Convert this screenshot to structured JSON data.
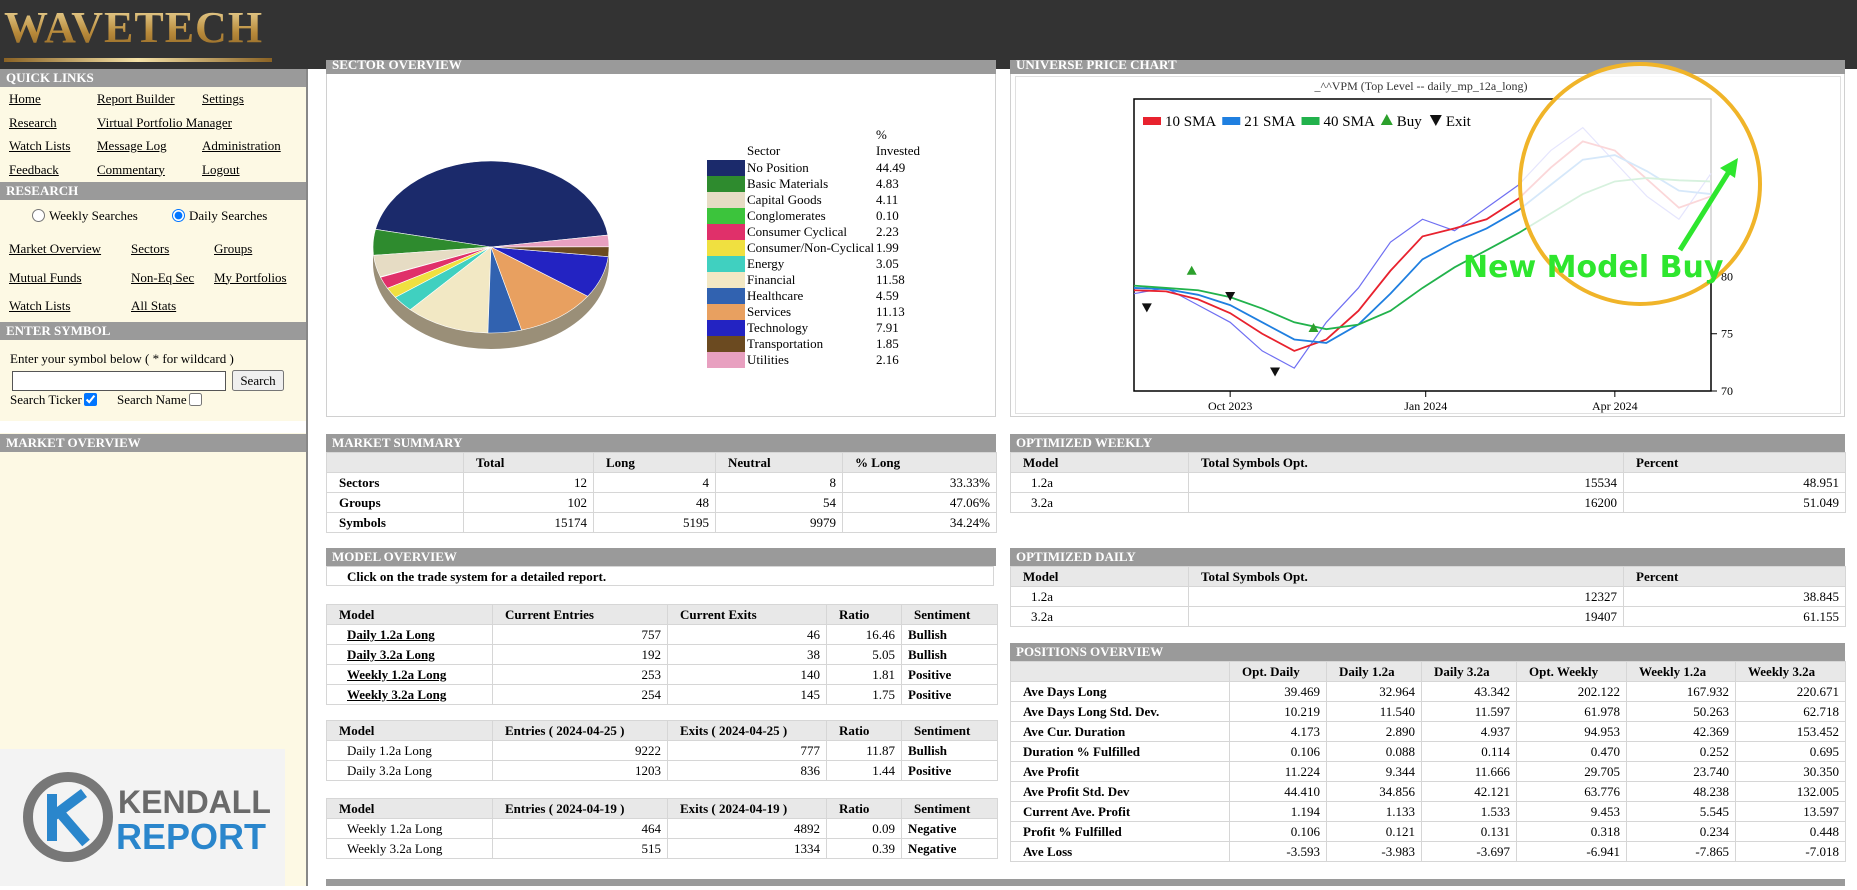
{
  "header": {
    "brand": "WAVETECH"
  },
  "sidebar": {
    "quick_links": {
      "title": "QUICK LINKS",
      "rows": [
        [
          "Home",
          "Report Builder",
          "Settings"
        ],
        [
          "Research",
          "Virtual Portfolio Manager"
        ],
        [
          "Watch Lists",
          "Message Log",
          "Administration"
        ],
        [
          "Feedback",
          "Commentary",
          "Logout"
        ]
      ]
    },
    "research": {
      "title": "RESEARCH",
      "options": [
        "Weekly Searches",
        "Daily Searches"
      ],
      "selected": 1,
      "rows": [
        [
          "Market Overview",
          "Sectors",
          "Groups"
        ],
        [
          "Mutual Funds",
          "Non-Eq Sec",
          "My Portfolios"
        ],
        [
          "Watch Lists",
          "All Stats"
        ]
      ]
    },
    "enter_symbol": {
      "title": "ENTER SYMBOL",
      "prompt": "Enter your symbol below ( * for wildcard )",
      "button": "Search",
      "checks": [
        {
          "label": "Search Ticker",
          "checked": true
        },
        {
          "label": "Search Name",
          "checked": false
        }
      ]
    },
    "market_overview": {
      "title": "MARKET OVERVIEW"
    },
    "logo": {
      "line1": "KENDALL",
      "line2": "REPORT"
    }
  },
  "sector_overview": {
    "title": "SECTOR OVERVIEW"
  },
  "price_chart_panel": {
    "title": "UNIVERSE PRICE CHART"
  },
  "chart_data": [
    {
      "type": "pie",
      "columns": [
        "Sector",
        "% Invested"
      ],
      "categories": [
        "No Position",
        "Basic Materials",
        "Capital Goods",
        "Conglomerates",
        "Consumer Cyclical",
        "Consumer/Non-Cyclical",
        "Energy",
        "Financial",
        "Healthcare",
        "Services",
        "Technology",
        "Transportation",
        "Utilities"
      ],
      "values": [
        44.49,
        4.83,
        4.11,
        0.1,
        2.23,
        1.99,
        3.05,
        11.58,
        4.59,
        11.13,
        7.91,
        1.85,
        2.16
      ],
      "value_labels": [
        "44.49",
        "4.83",
        "4.11",
        "0.10",
        "2.23",
        "1.99",
        "3.05",
        "11.58",
        "4.59",
        "11.13",
        "7.91",
        "1.85",
        "2.16"
      ],
      "colors": [
        "#1b2a6b",
        "#2e8b2e",
        "#e6dcc4",
        "#3cc43c",
        "#e0306a",
        "#f0e040",
        "#40d0c0",
        "#f2e8c4",
        "#3162b0",
        "#e8a060",
        "#2323c2",
        "#6b4a20",
        "#e8a0c0"
      ]
    },
    {
      "type": "line",
      "title": "_^^VPM (Top Level -- daily_mp_12a_long)",
      "x": [
        0,
        0.5,
        1,
        1.5,
        2,
        2.5,
        3,
        3.5,
        4,
        4.5,
        5,
        5.5,
        6,
        6.5,
        7,
        7.5,
        8,
        8.5,
        9
      ],
      "series": [
        {
          "color": "#6f6ff2",
          "values": [
            78.5,
            79,
            77.5,
            76,
            73.5,
            72,
            76,
            79,
            83,
            85,
            84,
            86,
            88,
            91,
            93,
            90,
            87,
            85,
            89
          ]
        },
        {
          "name": "10 SMA",
          "color": "#e8222e",
          "values": [
            78.8,
            78.7,
            78,
            76.8,
            75,
            73.5,
            74.5,
            77,
            80.5,
            83.5,
            84.2,
            85,
            86.8,
            89.5,
            91.8,
            91,
            88.5,
            86,
            87
          ]
        },
        {
          "name": "21 SMA",
          "color": "#1f7fe0",
          "values": [
            79,
            78.9,
            78.4,
            77.5,
            76,
            74.5,
            74.2,
            75.8,
            78.5,
            81.5,
            83,
            84.2,
            85.8,
            88,
            90.2,
            90.6,
            89.2,
            87.5,
            87.2
          ]
        },
        {
          "name": "40 SMA",
          "color": "#22b24c",
          "values": [
            79.2,
            79,
            78.8,
            78.2,
            77.2,
            76,
            75.4,
            75.8,
            77,
            79,
            80.8,
            82.3,
            83.8,
            85.5,
            87.2,
            88.3,
            88.6,
            88.4,
            88.3
          ]
        }
      ],
      "markers": [
        {
          "name": "Buy",
          "color": "#2ca02c",
          "x": [
            0.9,
            2.8
          ],
          "values": [
            80.5,
            75.5
          ]
        },
        {
          "name": "Exit",
          "color": "#111111",
          "x": [
            0.2,
            1.5,
            2.2
          ],
          "values": [
            77.3,
            78.3,
            71.7
          ]
        }
      ],
      "xlim": [
        0,
        9
      ],
      "ylim": [
        70,
        95.5
      ],
      "xticks": [
        {
          "value": 1.5,
          "label": "Oct 2023"
        },
        {
          "value": 4.55,
          "label": "Jan 2024"
        },
        {
          "value": 7.5,
          "label": "Apr 2024"
        }
      ],
      "yticks": [
        70,
        75,
        80
      ],
      "annotation": "New Model Buy"
    }
  ],
  "market_summary": {
    "title": "MARKET SUMMARY",
    "columns": [
      "Total",
      "Long",
      "Neutral",
      "% Long"
    ],
    "rows": [
      [
        "Sectors",
        "12",
        "4",
        "8",
        "33.33%"
      ],
      [
        "Groups",
        "102",
        "48",
        "54",
        "47.06%"
      ],
      [
        "Symbols",
        "15174",
        "5195",
        "9979",
        "34.24%"
      ]
    ]
  },
  "model_overview": {
    "title": "MODEL OVERVIEW",
    "note": "Click on the trade system for a detailed report.",
    "tables": [
      {
        "linked": true,
        "columns": [
          "Model",
          "Current Entries",
          "Current Exits",
          "Ratio",
          "Sentiment"
        ],
        "rows": [
          [
            "Daily 1.2a Long",
            "757",
            "46",
            "16.46",
            "Bullish"
          ],
          [
            "Daily 3.2a Long",
            "192",
            "38",
            "5.05",
            "Bullish"
          ],
          [
            "Weekly 1.2a Long",
            "253",
            "140",
            "1.81",
            "Positive"
          ],
          [
            "Weekly 3.2a Long",
            "254",
            "145",
            "1.75",
            "Positive"
          ]
        ]
      },
      {
        "linked": false,
        "columns": [
          "Model",
          "Entries ( 2024-04-25 )",
          "Exits ( 2024-04-25 )",
          "Ratio",
          "Sentiment"
        ],
        "rows": [
          [
            "Daily 1.2a Long",
            "9222",
            "777",
            "11.87",
            "Bullish"
          ],
          [
            "Daily 3.2a Long",
            "1203",
            "836",
            "1.44",
            "Positive"
          ]
        ]
      },
      {
        "linked": false,
        "columns": [
          "Model",
          "Entries ( 2024-04-19 )",
          "Exits ( 2024-04-19 )",
          "Ratio",
          "Sentiment"
        ],
        "rows": [
          [
            "Weekly 1.2a Long",
            "464",
            "4892",
            "0.09",
            "Negative"
          ],
          [
            "Weekly 3.2a Long",
            "515",
            "1334",
            "0.39",
            "Negative"
          ]
        ]
      }
    ]
  },
  "optimized_weekly": {
    "title": "OPTIMIZED WEEKLY",
    "columns": [
      "Model",
      "Total Symbols Opt.",
      "Percent"
    ],
    "rows": [
      [
        "1.2a",
        "15534",
        "48.951"
      ],
      [
        "3.2a",
        "16200",
        "51.049"
      ]
    ]
  },
  "optimized_daily": {
    "title": "OPTIMIZED DAILY",
    "columns": [
      "Model",
      "Total Symbols Opt.",
      "Percent"
    ],
    "rows": [
      [
        "1.2a",
        "12327",
        "38.845"
      ],
      [
        "3.2a",
        "19407",
        "61.155"
      ]
    ]
  },
  "positions_overview": {
    "title": "POSITIONS OVERVIEW",
    "columns": [
      "Opt. Daily",
      "Daily 1.2a",
      "Daily 3.2a",
      "Opt. Weekly",
      "Weekly 1.2a",
      "Weekly 3.2a"
    ],
    "rows": [
      [
        "Ave Days Long",
        "39.469",
        "32.964",
        "43.342",
        "202.122",
        "167.932",
        "220.671"
      ],
      [
        "Ave Days Long Std. Dev.",
        "10.219",
        "11.540",
        "11.597",
        "61.978",
        "50.263",
        "62.718"
      ],
      [
        "Ave Cur. Duration",
        "4.173",
        "2.890",
        "4.937",
        "94.953",
        "42.369",
        "153.452"
      ],
      [
        "Duration % Fulfilled",
        "0.106",
        "0.088",
        "0.114",
        "0.470",
        "0.252",
        "0.695"
      ],
      [
        "Ave Profit",
        "11.224",
        "9.344",
        "11.666",
        "29.705",
        "23.740",
        "30.350"
      ],
      [
        "Ave Profit Std. Dev",
        "44.410",
        "34.856",
        "42.121",
        "63.776",
        "48.238",
        "132.005"
      ],
      [
        "Current Ave. Profit",
        "1.194",
        "1.133",
        "1.533",
        "9.453",
        "5.545",
        "13.597"
      ],
      [
        "Profit % Fulfilled",
        "0.106",
        "0.121",
        "0.131",
        "0.318",
        "0.234",
        "0.448"
      ],
      [
        "Ave Loss",
        "-3.593",
        "-3.983",
        "-3.697",
        "-6.941",
        "-7.865",
        "-7.018"
      ]
    ]
  }
}
